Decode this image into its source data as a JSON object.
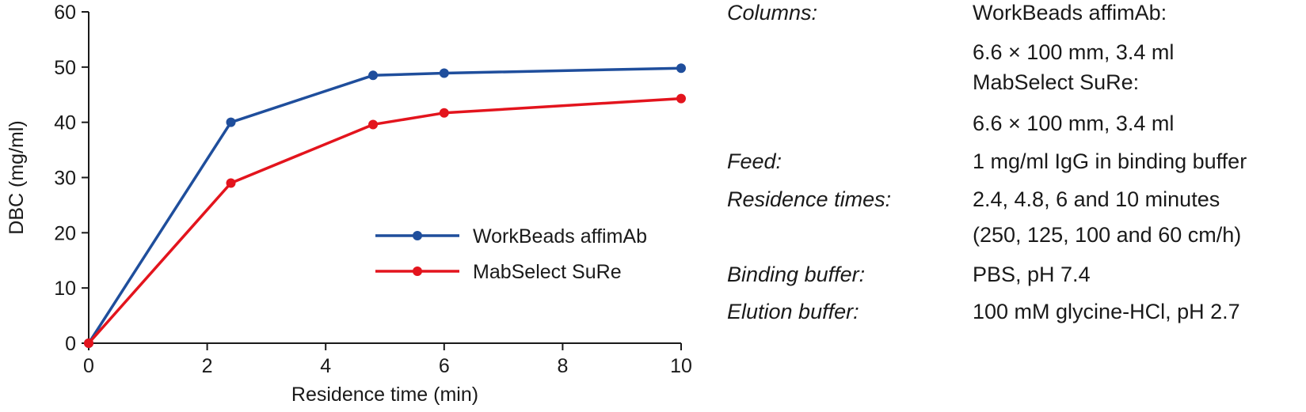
{
  "chart_data": {
    "type": "line",
    "xlabel": "Residence time (min)",
    "ylabel": "DBC (mg/ml)",
    "xlim": [
      0,
      10
    ],
    "ylim": [
      0,
      60
    ],
    "x_ticks": [
      "0",
      "2",
      "4",
      "6",
      "8",
      "10"
    ],
    "y_ticks": [
      "0",
      "10",
      "20",
      "30",
      "40",
      "50",
      "60"
    ],
    "grid": false,
    "legend_position": "center-right",
    "series": [
      {
        "name": "WorkBeads affimAb",
        "color": "#1f4e9c",
        "x": [
          0,
          2.4,
          4.8,
          6,
          10
        ],
        "y": [
          0,
          40,
          48.5,
          48.9,
          49.8
        ]
      },
      {
        "name": "MabSelect SuRe",
        "color": "#e3141d",
        "x": [
          0,
          2.4,
          4.8,
          6,
          10
        ],
        "y": [
          0,
          29,
          39.6,
          41.7,
          44.3
        ]
      }
    ]
  },
  "conditions": [
    {
      "label": "Columns:",
      "lines": [
        "WorkBeads affimAb:",
        "6.6 × 100 mm, 3.4 ml",
        "MabSelect SuRe:",
        "6.6 × 100 mm, 3.4 ml"
      ]
    },
    {
      "label": "Feed:",
      "lines": [
        "1 mg/ml IgG in binding buffer"
      ]
    },
    {
      "label": "Residence times:",
      "lines": [
        "2.4, 4.8, 6 and 10 minutes",
        "(250, 125, 100 and 60 cm/h)"
      ]
    },
    {
      "label": "Binding buffer:",
      "lines": [
        "PBS, pH 7.4"
      ]
    },
    {
      "label": "Elution buffer:",
      "lines": [
        "100 mM glycine-HCl, pH 2.7"
      ]
    }
  ]
}
